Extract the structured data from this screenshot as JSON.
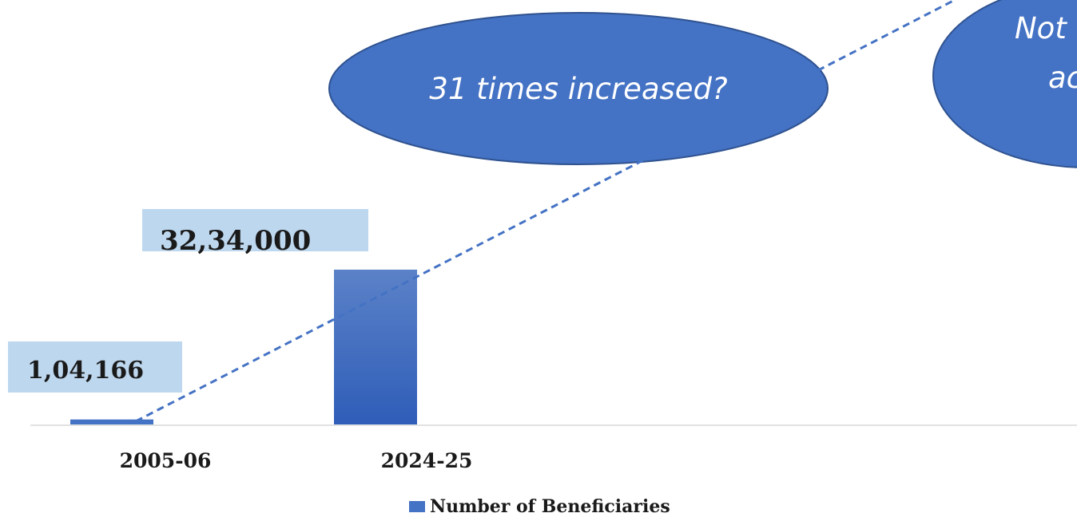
{
  "chart_data": {
    "type": "bar",
    "categories": [
      "2005-06",
      "2024-25"
    ],
    "series": [
      {
        "name": "Number of Beneficiaries",
        "values": [
          104166,
          3234000
        ]
      }
    ],
    "data_labels": [
      "1,04,166",
      "32,34,000"
    ],
    "ylim": [
      0,
      10000000
    ],
    "grid": false,
    "legend": "bottom",
    "annotations": [
      {
        "text": "31 times increased?"
      },
      {
        "text": "Not",
        "text_line2": "ac"
      }
    ],
    "colors": {
      "bar": "#4472C4",
      "bar_light": "#5B82C8",
      "label_box": "#BDD7EE",
      "ellipse": "#4472C4",
      "ellipse_stroke": "#2F528F",
      "trend": "#4472C4"
    }
  }
}
